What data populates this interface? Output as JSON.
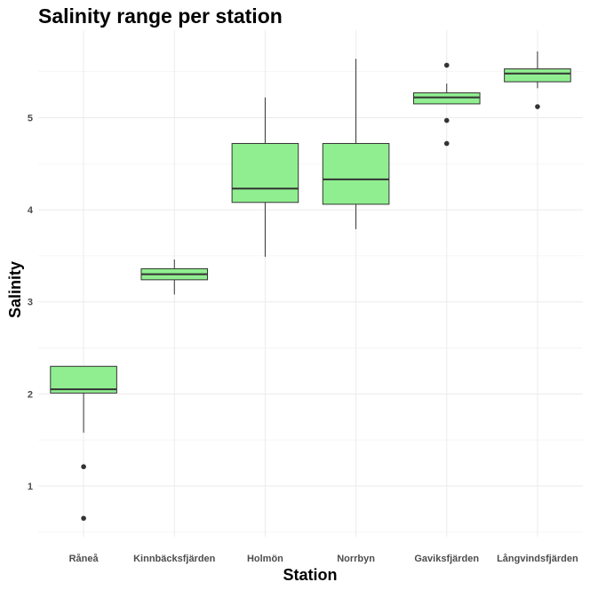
{
  "chart_data": {
    "type": "boxplot",
    "title": "Salinity range per station",
    "xlabel": "Station",
    "ylabel": "Salinity",
    "ylim": [
      0.45,
      5.95
    ],
    "yticks": [
      1,
      2,
      3,
      4,
      5
    ],
    "grid": true,
    "box_color": "#90ee90",
    "line_color": "#333333",
    "categories": [
      "Råneå",
      "Kinnbäcksfjärden",
      "Holmön",
      "Norrbyn",
      "Gaviksfjärden",
      "Långvindsfjärden"
    ],
    "boxes": [
      {
        "station": "Råneå",
        "whisker_low": 1.58,
        "q1": 2.01,
        "median": 2.05,
        "q3": 2.3,
        "whisker_high": 2.3,
        "outliers": [
          1.21,
          0.65
        ]
      },
      {
        "station": "Kinnbäcksfjärden",
        "whisker_low": 3.08,
        "q1": 3.24,
        "median": 3.3,
        "q3": 3.36,
        "whisker_high": 3.46,
        "outliers": []
      },
      {
        "station": "Holmön",
        "whisker_low": 3.49,
        "q1": 4.08,
        "median": 4.23,
        "q3": 4.72,
        "whisker_high": 5.22,
        "outliers": []
      },
      {
        "station": "Norrbyn",
        "whisker_low": 3.79,
        "q1": 4.06,
        "median": 4.33,
        "q3": 4.72,
        "whisker_high": 5.64,
        "outliers": []
      },
      {
        "station": "Gaviksfjärden",
        "whisker_low": 5.15,
        "q1": 5.15,
        "median": 5.22,
        "q3": 5.27,
        "whisker_high": 5.37,
        "outliers": [
          5.57,
          4.97,
          4.72
        ]
      },
      {
        "station": "Långvindsfjärden",
        "whisker_low": 5.32,
        "q1": 5.39,
        "median": 5.48,
        "q3": 5.53,
        "whisker_high": 5.72,
        "outliers": [
          5.12
        ]
      }
    ]
  }
}
